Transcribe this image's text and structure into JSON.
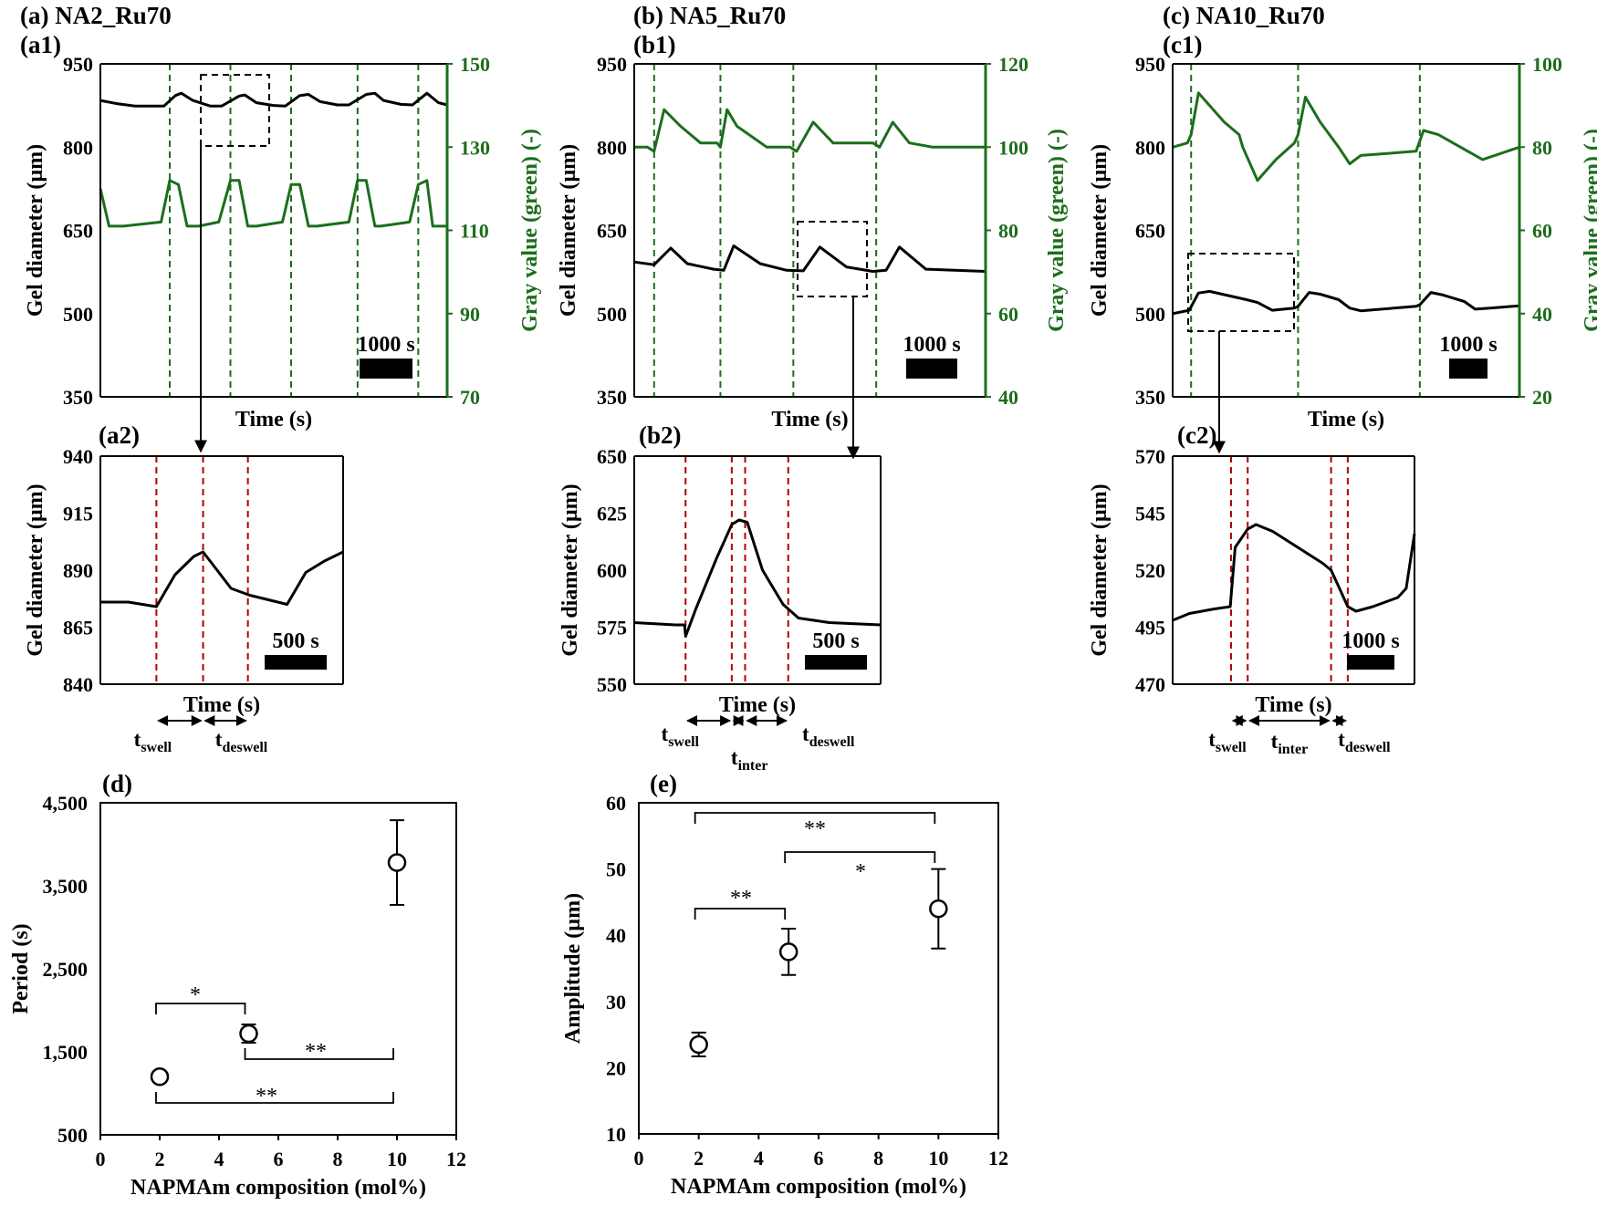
{
  "colors": {
    "black": "#000000",
    "green": "#1c6e1c",
    "red": "#b00000"
  },
  "panels": {
    "a": {
      "title": "(a) NA2_Ru70",
      "label1": "(a1)",
      "label2": "(a2)"
    },
    "b": {
      "title": "(b) NA5_Ru70",
      "label1": "(b1)",
      "label2": "(b2)"
    },
    "c": {
      "title": "(c) NA10_Ru70",
      "label1": "(c1)",
      "label2": "(c2)"
    },
    "d": {
      "label": "(d)"
    },
    "e": {
      "label": "(e)"
    }
  },
  "chart_data": [
    {
      "id": "a1",
      "type": "line",
      "title": "(a) NA2_Ru70",
      "xlabel": "Time (s)",
      "ylabel": "Gel diameter (µm)",
      "y2label": "Gray value (green) (-)",
      "ylim": [
        350,
        950
      ],
      "yticks": [
        "950",
        "800",
        "650",
        "500",
        "350"
      ],
      "y2lim": [
        70,
        150
      ],
      "y2ticks": [
        "150",
        "130",
        "110",
        "90",
        "70"
      ],
      "xlim": [
        0,
        6000
      ],
      "scale_bar": "1000 s",
      "markers": [
        1200,
        2250,
        3300,
        4450,
        5500
      ],
      "series": [
        {
          "name": "Gel diameter",
          "axis": "left",
          "color": "black",
          "x": [
            0,
            300,
            600,
            900,
            1100,
            1300,
            1400,
            1600,
            1900,
            2100,
            2400,
            2500,
            2700,
            3000,
            3200,
            3450,
            3600,
            3800,
            4100,
            4300,
            4600,
            4750,
            4900,
            5200,
            5400,
            5650,
            5850,
            6000
          ],
          "y": [
            884,
            878,
            874,
            874,
            874,
            893,
            897,
            884,
            874,
            874,
            892,
            894,
            880,
            875,
            874,
            893,
            895,
            882,
            876,
            876,
            895,
            897,
            884,
            877,
            876,
            897,
            880,
            876
          ]
        },
        {
          "name": "Gray value (green)",
          "axis": "right",
          "color": "green",
          "x": [
            0,
            150,
            400,
            1050,
            1200,
            1350,
            1500,
            1700,
            2050,
            2250,
            2400,
            2550,
            2700,
            3150,
            3300,
            3450,
            3600,
            3750,
            4300,
            4450,
            4600,
            4750,
            4850,
            5350,
            5500,
            5650,
            5750,
            6000
          ],
          "y": [
            120,
            111,
            111,
            112,
            122,
            121,
            111,
            111,
            112,
            122,
            122,
            111,
            111,
            112,
            121,
            121,
            111,
            111,
            112,
            122,
            122,
            111,
            111,
            112,
            121,
            122,
            111,
            111
          ]
        }
      ]
    },
    {
      "id": "a2",
      "type": "line",
      "xlabel": "Time (s)",
      "ylabel": "Gel diameter (µm)",
      "ylim": [
        840,
        940
      ],
      "yticks": [
        "940",
        "915",
        "890",
        "865",
        "840"
      ],
      "xlim": [
        0,
        2600
      ],
      "scale_bar": "500 s",
      "markers": [
        600,
        1100,
        1580
      ],
      "interval_labels": [
        {
          "main": "t",
          "sub": "swell"
        },
        {
          "main": "t",
          "sub": "deswell"
        }
      ],
      "series": [
        {
          "name": "Gel diameter",
          "axis": "left",
          "color": "black",
          "x": [
            0,
            300,
            600,
            800,
            1000,
            1100,
            1250,
            1400,
            1600,
            1800,
            2000,
            2200,
            2400,
            2600
          ],
          "y": [
            876,
            876,
            874,
            888,
            896,
            898,
            890,
            882,
            879,
            877,
            875,
            889,
            894,
            898
          ]
        }
      ]
    },
    {
      "id": "b1",
      "type": "line",
      "title": "(b) NA5_Ru70",
      "xlabel": "Time (s)",
      "ylabel": "Gel diameter (µm)",
      "y2label": "Gray value (green) (-)",
      "ylim": [
        350,
        950
      ],
      "yticks": [
        "950",
        "800",
        "650",
        "500",
        "350"
      ],
      "y2lim": [
        40,
        120
      ],
      "y2ticks": [
        "120",
        "100",
        "80",
        "60",
        "40"
      ],
      "xlim": [
        0,
        5300
      ],
      "scale_bar": "1000 s",
      "markers": [
        300,
        1300,
        2400,
        3650
      ],
      "series": [
        {
          "name": "Gel diameter",
          "axis": "left",
          "color": "black",
          "x": [
            0,
            300,
            550,
            800,
            1200,
            1350,
            1500,
            1900,
            2300,
            2550,
            2800,
            3200,
            3600,
            3800,
            4000,
            4400,
            5300
          ],
          "y": [
            593,
            588,
            618,
            590,
            580,
            578,
            622,
            590,
            578,
            577,
            620,
            584,
            576,
            578,
            620,
            580,
            576
          ]
        },
        {
          "name": "Gray value (green)",
          "axis": "right",
          "color": "green",
          "x": [
            0,
            200,
            300,
            450,
            700,
            1000,
            1250,
            1300,
            1400,
            1550,
            2000,
            2350,
            2450,
            2700,
            3000,
            3600,
            3700,
            3900,
            4150,
            4500,
            5300
          ],
          "y": [
            100,
            100,
            99,
            109,
            105,
            101,
            101,
            100,
            109,
            105,
            100,
            100,
            99,
            106,
            101,
            101,
            100,
            106,
            101,
            100,
            100
          ]
        }
      ]
    },
    {
      "id": "b2",
      "type": "line",
      "xlabel": "Time (s)",
      "ylabel": "Gel diameter (µm)",
      "ylim": [
        550,
        650
      ],
      "yticks": [
        "650",
        "625",
        "600",
        "575",
        "550"
      ],
      "xlim": [
        0,
        2400
      ],
      "scale_bar": "500 s",
      "markers": [
        500,
        950,
        1080,
        1500
      ],
      "interval_labels": [
        {
          "main": "t",
          "sub": "swell"
        },
        {
          "main": "t",
          "sub": "inter"
        },
        {
          "main": "t",
          "sub": "deswell"
        }
      ],
      "series": [
        {
          "name": "Gel diameter",
          "axis": "left",
          "color": "black",
          "x": [
            0,
            400,
            490,
            500,
            600,
            800,
            950,
            1020,
            1100,
            1250,
            1450,
            1600,
            1900,
            2400
          ],
          "y": [
            577,
            576,
            576,
            571,
            583,
            605,
            620,
            622,
            621,
            600,
            585,
            579,
            577,
            576
          ]
        }
      ]
    },
    {
      "id": "c1",
      "type": "line",
      "title": "(c) NA10_Ru70",
      "xlabel": "Time (s)",
      "ylabel": "Gel diameter (µm)",
      "y2label": "Gray value (green) (-)",
      "ylim": [
        350,
        950
      ],
      "yticks": [
        "950",
        "800",
        "650",
        "500",
        "350"
      ],
      "y2lim": [
        20,
        100
      ],
      "y2ticks": [
        "100",
        "80",
        "60",
        "40",
        "20"
      ],
      "xlim": [
        0,
        9400
      ],
      "scale_bar": "1000 s",
      "markers": [
        500,
        3400,
        6700
      ],
      "series": [
        {
          "name": "Gel diameter",
          "axis": "left",
          "color": "black",
          "x": [
            0,
            450,
            700,
            1000,
            2000,
            2300,
            2700,
            3300,
            3400,
            3700,
            4000,
            4500,
            4800,
            5100,
            6600,
            6700,
            7000,
            7300,
            7900,
            8200,
            8600,
            9400
          ],
          "y": [
            500,
            506,
            537,
            540,
            525,
            520,
            506,
            510,
            513,
            538,
            535,
            525,
            510,
            505,
            513,
            516,
            538,
            534,
            522,
            508,
            510,
            514
          ]
        },
        {
          "name": "Gray value (green)",
          "axis": "right",
          "color": "green",
          "x": [
            0,
            400,
            500,
            700,
            1400,
            1800,
            1900,
            2300,
            2800,
            3300,
            3400,
            3600,
            4000,
            4500,
            4800,
            5100,
            6600,
            6800,
            7200,
            8000,
            8400,
            9400
          ],
          "y": [
            80,
            81,
            83,
            93,
            86,
            83,
            80,
            72,
            77,
            81,
            83,
            92,
            86,
            80,
            76,
            78,
            79,
            84,
            83,
            79,
            77,
            80
          ]
        }
      ]
    },
    {
      "id": "c2",
      "type": "line",
      "xlabel": "Time (s)",
      "ylabel": "Gel diameter (µm)",
      "ylim": [
        470,
        570
      ],
      "yticks": [
        "570",
        "545",
        "520",
        "495",
        "470"
      ],
      "xlim": [
        0,
        2900
      ],
      "scale_bar": "1000 s",
      "markers": [
        700,
        900,
        1900,
        2100
      ],
      "interval_labels": [
        {
          "main": "t",
          "sub": "swell"
        },
        {
          "main": "t",
          "sub": "inter"
        },
        {
          "main": "t",
          "sub": "deswell"
        }
      ],
      "series": [
        {
          "name": "Gel diameter",
          "axis": "left",
          "color": "black",
          "x": [
            0,
            200,
            500,
            690,
            750,
            900,
            1000,
            1200,
            1500,
            1800,
            1900,
            2000,
            2100,
            2200,
            2400,
            2700,
            2800,
            2900
          ],
          "y": [
            498,
            501,
            503,
            504,
            530,
            538,
            540,
            537,
            530,
            523,
            520,
            512,
            504,
            502,
            504,
            508,
            512,
            536
          ]
        }
      ]
    },
    {
      "id": "d",
      "type": "scatter",
      "xlabel": "NAPMAm composition (mol%)",
      "ylabel": "Period (s)",
      "xlim": [
        0,
        12
      ],
      "xticks": [
        "0",
        "2",
        "4",
        "6",
        "8",
        "10",
        "12"
      ],
      "ylim": [
        500,
        4500
      ],
      "yticks": [
        "4,500",
        "3,500",
        "2,500",
        "1,500",
        "500"
      ],
      "points": [
        {
          "x": 2,
          "y": 1200,
          "err": 60
        },
        {
          "x": 5,
          "y": 1720,
          "err": 110
        },
        {
          "x": 10,
          "y": 3780,
          "err": 510
        }
      ],
      "significance": [
        {
          "from": 2,
          "to": 5,
          "label": "*"
        },
        {
          "from": 5,
          "to": 10,
          "label": "**"
        },
        {
          "from": 2,
          "to": 10,
          "label": "**"
        }
      ]
    },
    {
      "id": "e",
      "type": "scatter",
      "xlabel": "NAPMAm composition (mol%)",
      "ylabel": "Amplitude (µm)",
      "xlim": [
        0,
        12
      ],
      "xticks": [
        "0",
        "2",
        "4",
        "6",
        "8",
        "10",
        "12"
      ],
      "ylim": [
        10,
        60
      ],
      "yticks": [
        "60",
        "50",
        "40",
        "30",
        "20",
        "10"
      ],
      "points": [
        {
          "x": 2,
          "y": 23.5,
          "err": 1.8
        },
        {
          "x": 5,
          "y": 37.5,
          "err": 3.5
        },
        {
          "x": 10,
          "y": 44,
          "err": 6
        }
      ],
      "significance": [
        {
          "from": 2,
          "to": 5,
          "label": "**"
        },
        {
          "from": 5,
          "to": 10,
          "label": "*"
        },
        {
          "from": 2,
          "to": 10,
          "label": "**"
        }
      ]
    }
  ]
}
